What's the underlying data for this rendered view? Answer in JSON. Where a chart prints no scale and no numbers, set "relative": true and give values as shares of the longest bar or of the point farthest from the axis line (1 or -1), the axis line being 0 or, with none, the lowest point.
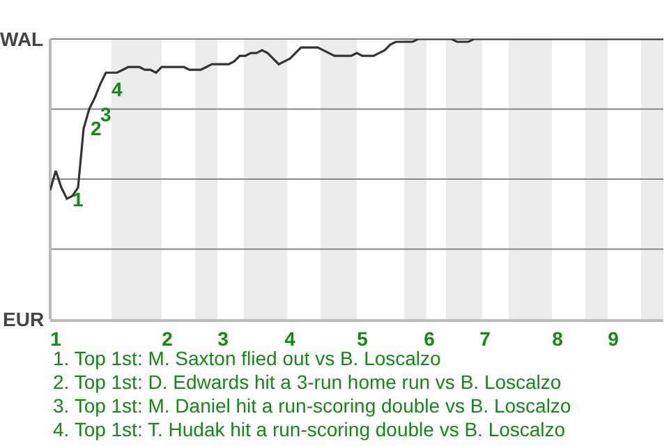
{
  "chart_data": {
    "type": "line",
    "relative": true,
    "categories": [
      null,
      "1",
      null,
      null,
      null,
      null,
      null,
      null,
      null,
      null,
      null,
      null,
      null,
      null,
      null,
      null,
      null,
      null,
      null,
      null,
      null,
      "2",
      null,
      null,
      null,
      null,
      null,
      null,
      null,
      null,
      null,
      "3",
      null,
      null,
      null,
      null,
      null,
      null,
      null,
      null,
      null,
      null,
      null,
      "4",
      null,
      null,
      null,
      null,
      null,
      null,
      null,
      null,
      null,
      null,
      null,
      null,
      "5",
      null,
      null,
      null,
      null,
      null,
      null,
      null,
      null,
      null,
      null,
      null,
      "6",
      null,
      null,
      null,
      null,
      null,
      null,
      null,
      null,
      null,
      "7",
      null,
      null,
      null,
      null,
      null,
      null,
      null,
      null,
      null,
      null,
      null,
      null,
      "8",
      null,
      null,
      null,
      null,
      null,
      null,
      null,
      null,
      null,
      "9",
      null,
      null,
      null,
      null,
      null,
      null,
      null,
      null,
      null
    ],
    "series": [
      {
        "color": "#333333",
        "values": [
          0.46,
          0.53,
          0.47,
          0.43,
          0.44,
          0.47,
          0.68,
          0.75,
          0.79,
          0.84,
          0.88,
          0.88,
          0.88,
          0.89,
          0.9,
          0.9,
          0.9,
          0.89,
          0.89,
          0.88,
          0.9,
          0.9,
          0.9,
          0.9,
          0.9,
          0.89,
          0.89,
          0.89,
          0.9,
          0.91,
          0.91,
          0.91,
          0.91,
          0.92,
          0.94,
          0.94,
          0.95,
          0.95,
          0.96,
          0.95,
          0.93,
          0.91,
          0.92,
          0.93,
          0.95,
          0.97,
          0.97,
          0.97,
          0.97,
          0.96,
          0.95,
          0.94,
          0.94,
          0.94,
          0.94,
          0.95,
          0.94,
          0.94,
          0.94,
          0.95,
          0.96,
          0.98,
          0.99,
          0.99,
          0.99,
          0.99,
          1,
          1,
          1,
          1,
          1,
          1,
          1,
          0.99,
          0.99,
          0.99,
          1,
          1,
          1,
          1,
          1,
          1,
          1,
          1,
          1,
          1,
          1,
          1,
          1,
          1,
          1,
          1,
          1,
          1,
          1,
          1,
          1,
          1,
          1,
          1,
          1,
          1,
          1,
          1,
          1,
          1,
          1,
          1,
          1,
          1,
          1
        ]
      }
    ],
    "grid": true,
    "marker": "none",
    "line_style": "solid",
    "annotations": [
      "WAL",
      "EUR",
      "1",
      "2",
      "3",
      "4",
      "1. Top 1st: M. Saxton flied out vs B. Loscalzo",
      "2. Top 1st: D. Edwards hit a 3-run home run vs B. Loscalzo",
      "3. Top 1st: M. Daniel hit a run-scoring double vs B. Loscalzo",
      "4. Top 1st: T. Hudak hit a run-scoring double vs B. Loscalzo"
    ]
  }
}
